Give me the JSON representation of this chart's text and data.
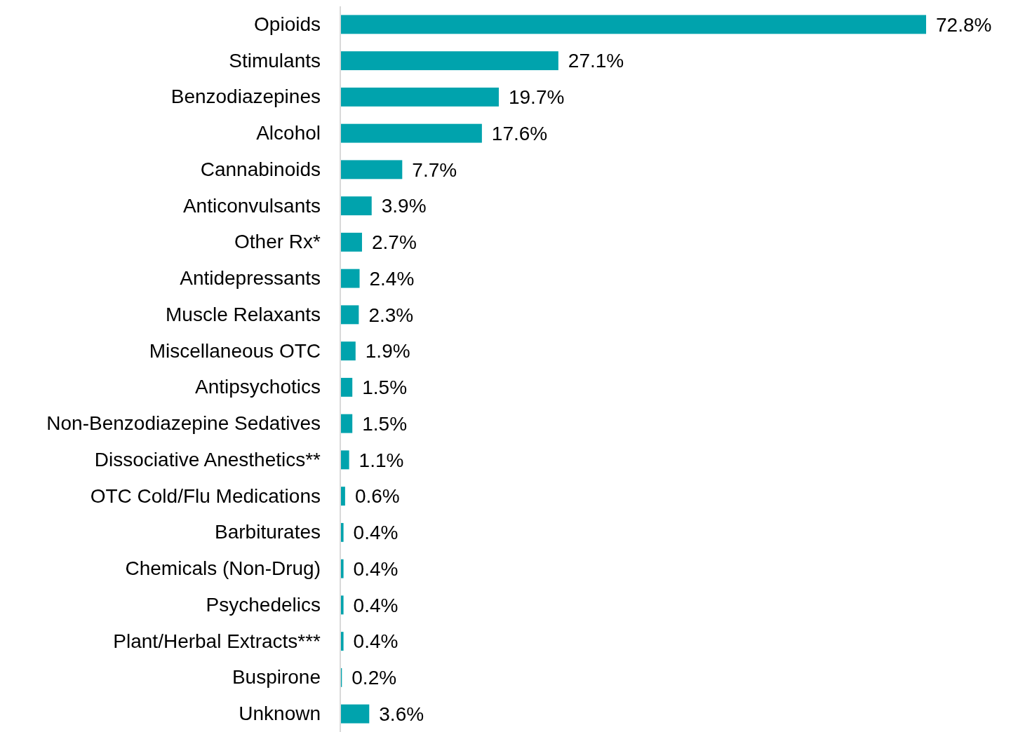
{
  "chart_data": {
    "type": "bar",
    "orientation": "horizontal",
    "color": "#00a3ad",
    "categories": [
      "Opioids",
      "Stimulants",
      "Benzodiazepines",
      "Alcohol",
      "Cannabinoids",
      "Anticonvulsants",
      "Other Rx*",
      "Antidepressants",
      "Muscle Relaxants",
      "Miscellaneous OTC",
      "Antipsychotics",
      "Non-Benzodiazepine Sedatives",
      "Dissociative Anesthetics**",
      "OTC Cold/Flu Medications",
      "Barbiturates",
      "Chemicals (Non-Drug)",
      "Psychedelics",
      "Plant/Herbal Extracts***",
      "Buspirone",
      "Unknown"
    ],
    "values": [
      72.8,
      27.1,
      19.7,
      17.6,
      7.7,
      3.9,
      2.7,
      2.4,
      2.3,
      1.9,
      1.5,
      1.5,
      1.1,
      0.6,
      0.4,
      0.4,
      0.4,
      0.4,
      0.2,
      3.6
    ],
    "value_labels": [
      "72.8%",
      "27.1%",
      "19.7%",
      "17.6%",
      "7.7%",
      "3.9%",
      "2.7%",
      "2.4%",
      "2.3%",
      "1.9%",
      "1.5%",
      "1.5%",
      "1.1%",
      "0.6%",
      "0.4%",
      "0.4%",
      "0.4%",
      "0.4%",
      "0.2%",
      "3.6%"
    ]
  }
}
